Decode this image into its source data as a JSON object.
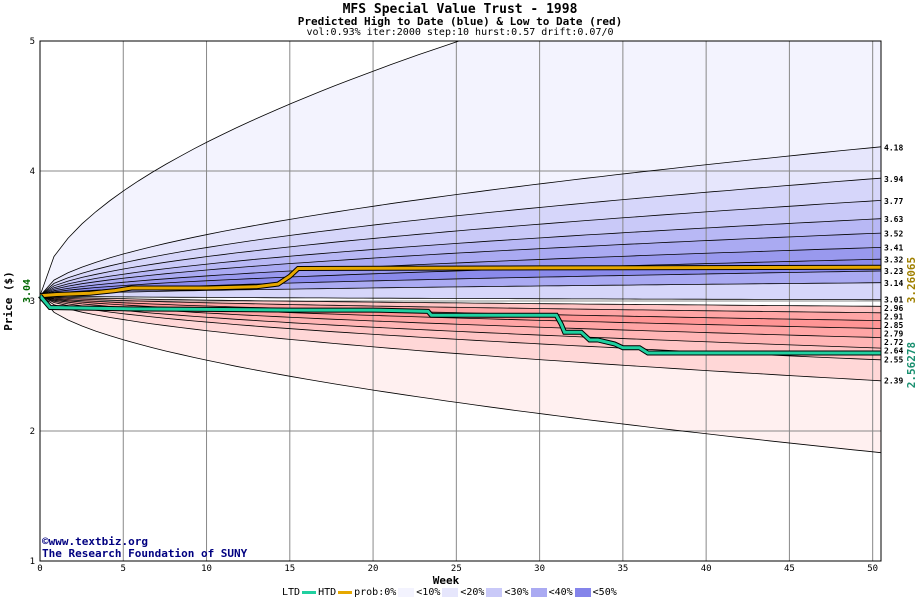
{
  "chart_data": {
    "type": "area",
    "title": "MFS Special Value Trust - 1998",
    "subtitle": "Predicted High to Date (blue) &  Low to Date (red)",
    "params": "vol:0.93% iter:2000 step:10 hurst:0.57 drift:0.07/0",
    "xlabel": "Week",
    "ylabel": "Price ($)",
    "xlim": [
      0,
      50.5
    ],
    "ylim": [
      1,
      5
    ],
    "x_ticks": [
      "0",
      "5",
      "10",
      "15",
      "20",
      "25",
      "30",
      "35",
      "40",
      "45",
      "50"
    ],
    "y_ticks": [
      "1",
      "2",
      "3",
      "4",
      "5"
    ],
    "start_price_label": "3.04",
    "high_quantile_labels": [
      "4.18",
      "3.94",
      "3.77",
      "3.63",
      "3.52",
      "3.41",
      "3.32",
      "3.23",
      "3.14",
      "3.01"
    ],
    "low_quantile_labels": [
      "2.96",
      "2.91",
      "2.85",
      "2.79",
      "2.72",
      "2.64",
      "2.55",
      "2.39"
    ],
    "end_values": {
      "htd": "3.26065",
      "ltd": "2.56278"
    },
    "series": [
      {
        "name": "HTD",
        "color": "#e6a800",
        "x": [
          0,
          1,
          3,
          4.5,
          5.5,
          10,
          13,
          14.3,
          15,
          15.5,
          30,
          50.5
        ],
        "y": [
          3.04,
          3.05,
          3.06,
          3.08,
          3.1,
          3.1,
          3.11,
          3.13,
          3.19,
          3.25,
          3.255,
          3.26
        ]
      },
      {
        "name": "LTD",
        "color": "#20d0a0",
        "x": [
          0,
          0.6,
          5,
          10,
          15,
          20,
          23.3,
          23.5,
          31,
          31.3,
          31.5,
          32.5,
          33,
          33.5,
          34.5,
          35,
          36,
          36.5,
          50.5
        ],
        "y": [
          3.04,
          2.95,
          2.94,
          2.935,
          2.93,
          2.93,
          2.92,
          2.89,
          2.89,
          2.82,
          2.76,
          2.76,
          2.7,
          2.7,
          2.67,
          2.64,
          2.64,
          2.6,
          2.6
        ]
      }
    ],
    "legend": {
      "ltd_label": "LTD",
      "htd_label": "HTD",
      "prob_label": "prob:0%",
      "bins": [
        "<10%",
        "<20%",
        "<30%",
        "<40%",
        "<50%"
      ],
      "colors": [
        "#f3f3fe",
        "#e6e6fc",
        "#c9c9f8",
        "#aaaaf2",
        "#8484ea"
      ],
      "low_colors": [
        "#fff0f0",
        "#ffd7d7",
        "#ffb5b5",
        "#ff9595",
        "#ff7777"
      ],
      "placement": "bottom"
    },
    "grid": true
  },
  "credit": {
    "site": "©www.textbiz.org",
    "org": "The Research Foundation of SUNY"
  }
}
